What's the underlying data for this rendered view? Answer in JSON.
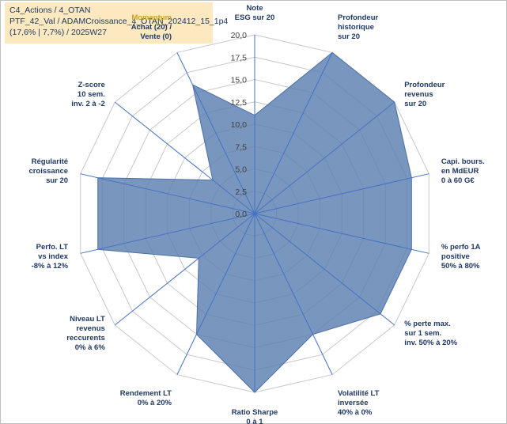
{
  "info": {
    "line1": "C4_Actions / 4_OTAN",
    "line2": "PTF_42_Val / ADAMCroissance_4_OTAN_202412_15_1p4",
    "line3": "(17,6% | 7,7%) / 2025W27"
  },
  "chart_data": {
    "type": "radar",
    "rmin": 0,
    "rmax": 20,
    "ticks": [
      "0,0",
      "2,5",
      "5,0",
      "7,5",
      "10,0",
      "12,5",
      "15,0",
      "17,5",
      "20,0"
    ],
    "tick_values": [
      0,
      2.5,
      5,
      7.5,
      10,
      12.5,
      15,
      17.5,
      20
    ],
    "series_color": "#5b7fb0",
    "grid_color": "#c8c8c8",
    "spoke_color": "#4472c4",
    "axes": [
      {
        "lines": [
          "Note",
          "ESG sur 20"
        ],
        "value": 11.0
      },
      {
        "lines": [
          "Profondeur",
          "historique",
          "sur 20"
        ],
        "value": 20.0
      },
      {
        "lines": [
          "Profondeur",
          "revenus",
          "sur 20"
        ],
        "value": 20.0
      },
      {
        "lines": [
          "Capi. bours.",
          "en MdEUR",
          "0 à 60 G€"
        ],
        "value": 18.0
      },
      {
        "lines": [
          "% perfo 1A",
          "positive",
          "50% à 80%"
        ],
        "value": 18.0
      },
      {
        "lines": [
          "% perte max.",
          "sur 1 sem.",
          "inv. 50% à 20%"
        ],
        "value": 18.0
      },
      {
        "lines": [
          "Volatilité LT",
          "inversée",
          "40% à 0%"
        ],
        "value": 15.0
      },
      {
        "lines": [
          "Ratio Sharpe",
          "0 à 1"
        ],
        "value": 20.0
      },
      {
        "lines": [
          "Rendement LT",
          "0% à 20%"
        ],
        "value": 15.0
      },
      {
        "lines": [
          "Niveau LT",
          "revenus",
          "reccurents",
          "0% à 6%"
        ],
        "value": 8.0
      },
      {
        "lines": [
          "Perfo. LT",
          "vs index",
          "-8% à 12%"
        ],
        "value": 18.0
      },
      {
        "lines": [
          "Régularité",
          "croissance",
          "sur 20"
        ],
        "value": 18.0
      },
      {
        "lines": [
          "Z-score",
          "10 sem.",
          "inv. 2 à -2"
        ],
        "value": 6.0
      },
      {
        "lines": [
          "Momentum",
          "Achat (20) /",
          "Vente (0)"
        ],
        "value": 16.0,
        "highlight_first_line": true
      }
    ]
  }
}
